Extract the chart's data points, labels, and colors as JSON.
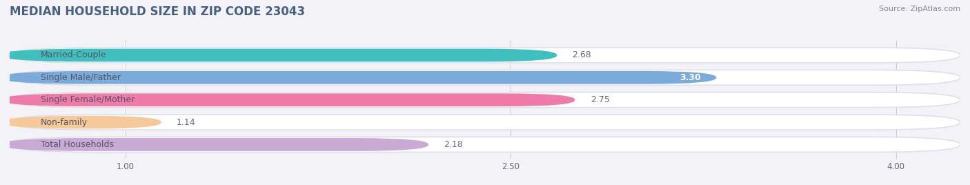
{
  "title": "MEDIAN HOUSEHOLD SIZE IN ZIP CODE 23043",
  "source": "Source: ZipAtlas.com",
  "categories": [
    "Married-Couple",
    "Single Male/Father",
    "Single Female/Mother",
    "Non-family",
    "Total Households"
  ],
  "values": [
    2.68,
    3.3,
    2.75,
    1.14,
    2.18
  ],
  "bar_colors": [
    "#40bfbf",
    "#7aabda",
    "#f07aaa",
    "#f5c99a",
    "#c8aad4"
  ],
  "value_inside": [
    false,
    true,
    false,
    false,
    false
  ],
  "xlim_start": 0.55,
  "xlim_end": 4.25,
  "xticks": [
    1.0,
    2.5,
    4.0
  ],
  "background_color": "#f2f2f7",
  "bar_bg_color": "#ffffff",
  "bar_outer_color": "#e0e0e8",
  "title_color": "#4a6080",
  "title_fontsize": 12,
  "label_fontsize": 9,
  "value_fontsize": 9,
  "source_fontsize": 8
}
